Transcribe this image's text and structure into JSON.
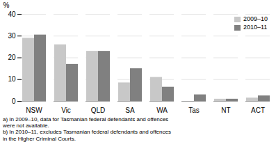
{
  "chart_data": {
    "type": "bar",
    "categories": [
      "NSW",
      "Vic",
      "QLD",
      "SA",
      "WA",
      "Tas",
      "NT",
      "ACT"
    ],
    "series": [
      {
        "name": "2009–10",
        "color": "#c8c8c8",
        "values": [
          29,
          26,
          23,
          8.5,
          11,
          0,
          1,
          1.5
        ]
      },
      {
        "name": "2010–11",
        "color": "#808080",
        "values": [
          30.5,
          17,
          23,
          15,
          6.5,
          3,
          1,
          2.5
        ]
      }
    ],
    "ylabel": "%",
    "ylim": [
      0,
      40
    ],
    "yticks": [
      0,
      10,
      20,
      30,
      40
    ],
    "grid": true,
    "legend": "upper right",
    "annotations": [
      "a) In 2009–10, data for Tasmanian federal defendants and offences\nwere not available.",
      "b) In 2010–11, excludes Tasmanian federal defendants and offences\nin the Higher Criminal Courts."
    ]
  }
}
